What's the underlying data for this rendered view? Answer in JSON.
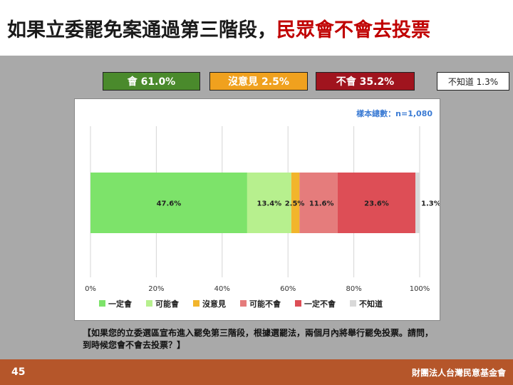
{
  "title": {
    "part1": "如果立委罷免案通過第三階段，",
    "part2": "民眾會不會去投票"
  },
  "summary": {
    "yes": "會 61.0%",
    "neutral": "沒意見 2.5%",
    "no": "不會 35.2%",
    "dont_know": "不知道 1.3%"
  },
  "chart_data": {
    "type": "bar",
    "orientation": "horizontal-stacked",
    "sample_label": "樣本總數：n=1,080",
    "xlim": [
      0,
      100
    ],
    "x_ticks": [
      "0%",
      "20%",
      "40%",
      "60%",
      "80%",
      "100%"
    ],
    "grid": true,
    "legend_position": "bottom",
    "series": [
      {
        "name": "一定會",
        "value": 47.6,
        "label": "47.6%",
        "color": "#7de36a"
      },
      {
        "name": "可能會",
        "value": 13.4,
        "label": "13.4%",
        "color": "#b7f08e"
      },
      {
        "name": "沒意見",
        "value": 2.5,
        "label": "2.5%",
        "color": "#f2b52c"
      },
      {
        "name": "可能不會",
        "value": 11.6,
        "label": "11.6%",
        "color": "#e57c7c"
      },
      {
        "name": "一定不會",
        "value": 23.6,
        "label": "23.6%",
        "color": "#dd4e56"
      },
      {
        "name": "不知道",
        "value": 1.3,
        "label": "1.3%",
        "color": "#d9d9d9"
      }
    ]
  },
  "question": "【如果您的立委選區宣布進入罷免第三階段，根據選罷法，兩個月內將舉行罷免投票。請問，到時候您會不會去投票？】",
  "footer": {
    "page_number": "45",
    "organization": "財團法人台灣民意基金會"
  }
}
